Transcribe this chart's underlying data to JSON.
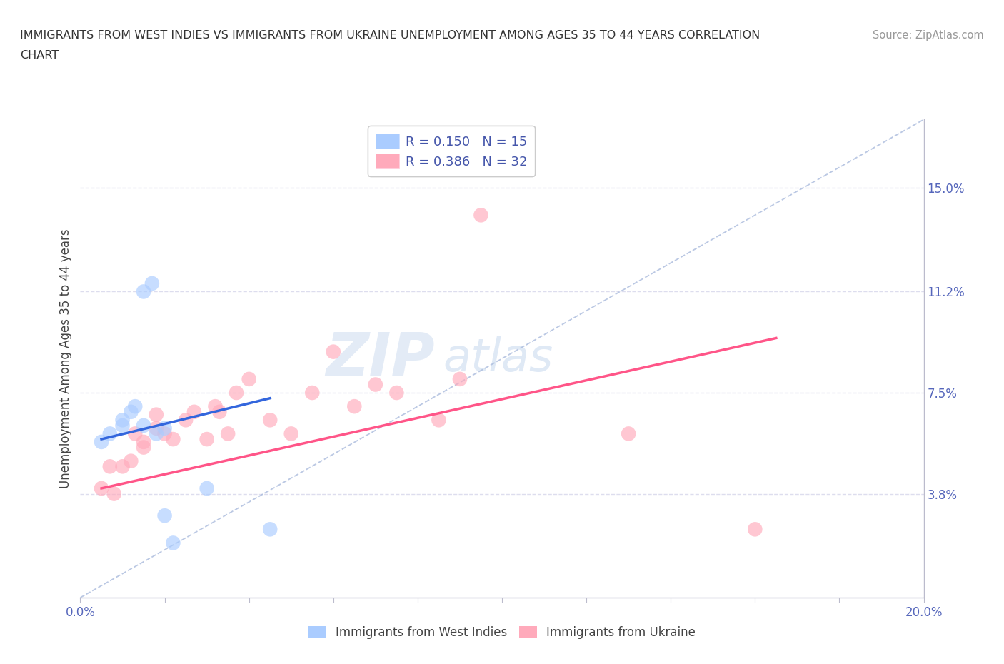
{
  "title_line1": "IMMIGRANTS FROM WEST INDIES VS IMMIGRANTS FROM UKRAINE UNEMPLOYMENT AMONG AGES 35 TO 44 YEARS CORRELATION",
  "title_line2": "CHART",
  "source_text": "Source: ZipAtlas.com",
  "ylabel": "Unemployment Among Ages 35 to 44 years",
  "xlim": [
    0.0,
    0.2
  ],
  "ylim": [
    0.0,
    0.175
  ],
  "x_ticks": [
    0.0,
    0.02,
    0.04,
    0.06,
    0.08,
    0.1,
    0.12,
    0.14,
    0.16,
    0.18,
    0.2
  ],
  "x_tick_labels": [
    "0.0%",
    "",
    "",
    "",
    "",
    "",
    "",
    "",
    "",
    "",
    "20.0%"
  ],
  "y_ticks": [
    0.038,
    0.075,
    0.112,
    0.15
  ],
  "y_tick_labels": [
    "3.8%",
    "7.5%",
    "11.2%",
    "15.0%"
  ],
  "west_indies_color": "#aaccff",
  "ukraine_color": "#ffaabb",
  "west_indies_line_color": "#3366dd",
  "ukraine_line_color": "#ff5588",
  "dashed_line_color": "#aabbdd",
  "legend_label_wi": "Immigrants from West Indies",
  "legend_label_uk": "Immigrants from Ukraine",
  "watermark_text": "ZIP",
  "watermark_text2": "atlas",
  "background_color": "#ffffff",
  "grid_color": "#ddddee",
  "west_indies_x": [
    0.005,
    0.007,
    0.01,
    0.01,
    0.012,
    0.013,
    0.015,
    0.015,
    0.017,
    0.018,
    0.02,
    0.02,
    0.022,
    0.03,
    0.045
  ],
  "west_indies_y": [
    0.057,
    0.06,
    0.063,
    0.065,
    0.068,
    0.07,
    0.063,
    0.112,
    0.115,
    0.06,
    0.062,
    0.03,
    0.02,
    0.04,
    0.025
  ],
  "ukraine_x": [
    0.005,
    0.007,
    0.008,
    0.01,
    0.012,
    0.013,
    0.015,
    0.015,
    0.018,
    0.018,
    0.02,
    0.022,
    0.025,
    0.027,
    0.03,
    0.032,
    0.033,
    0.035,
    0.037,
    0.04,
    0.045,
    0.05,
    0.055,
    0.06,
    0.065,
    0.07,
    0.075,
    0.085,
    0.09,
    0.095,
    0.13,
    0.16
  ],
  "ukraine_y": [
    0.04,
    0.048,
    0.038,
    0.048,
    0.05,
    0.06,
    0.057,
    0.055,
    0.062,
    0.067,
    0.06,
    0.058,
    0.065,
    0.068,
    0.058,
    0.07,
    0.068,
    0.06,
    0.075,
    0.08,
    0.065,
    0.06,
    0.075,
    0.09,
    0.07,
    0.078,
    0.075,
    0.065,
    0.08,
    0.14,
    0.06,
    0.025
  ],
  "wi_line_x": [
    0.005,
    0.045
  ],
  "wi_line_y": [
    0.058,
    0.073
  ],
  "uk_line_x": [
    0.005,
    0.165
  ],
  "uk_line_y": [
    0.04,
    0.095
  ]
}
